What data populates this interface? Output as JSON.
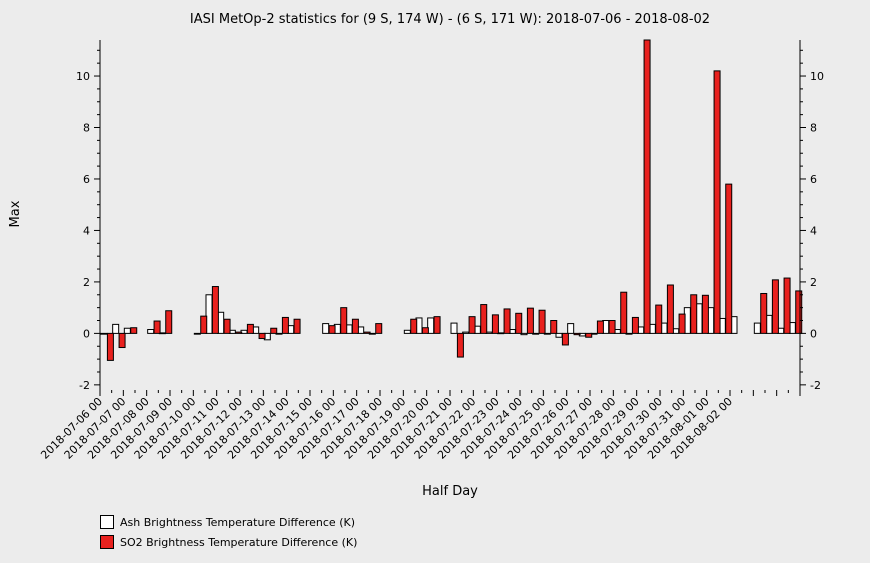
{
  "chart_data": {
    "type": "bar",
    "title": "IASI MetOp-2 statistics for (9 S, 174 W) - (6 S, 171 W): 2018-07-06 - 2018-08-02",
    "xlabel": "Half Day",
    "ylabel": "Max",
    "ylim": [
      -2.2,
      11.4
    ],
    "yticks": [
      -2,
      0,
      2,
      4,
      6,
      8,
      10
    ],
    "x_tick_labels": [
      "2018-07-06 00",
      "2018-07-07 00",
      "2018-07-08 00",
      "2018-07-09 00",
      "2018-07-10 00",
      "2018-07-11 00",
      "2018-07-12 00",
      "2018-07-13 00",
      "2018-07-14 00",
      "2018-07-15 00",
      "2018-07-16 00",
      "2018-07-17 00",
      "2018-07-18 00",
      "2018-07-19 00",
      "2018-07-20 00",
      "2018-07-21 00",
      "2018-07-22 00",
      "2018-07-23 00",
      "2018-07-24 00",
      "2018-07-25 00",
      "2018-07-26 00",
      "2018-07-27 00",
      "2018-07-28 00",
      "2018-07-29 00",
      "2018-07-30 00",
      "2018-07-31 00",
      "2018-08-01 00",
      "2018-08-02 00"
    ],
    "series": [
      {
        "name": "Ash Brightness Temperature Difference (K)",
        "color": "#ffffff",
        "values": [
          0.0,
          0.35,
          0.2,
          null,
          0.15,
          0.02,
          null,
          null,
          0.0,
          1.5,
          0.82,
          0.12,
          0.12,
          0.25,
          -0.25,
          0.0,
          0.3,
          null,
          null,
          0.38,
          0.35,
          0.33,
          0.25,
          0.0,
          null,
          null,
          0.12,
          0.6,
          0.6,
          null,
          0.4,
          0.05,
          0.28,
          0.05,
          0.02,
          0.15,
          -0.05,
          0.0,
          0.0,
          -0.15,
          0.38,
          -0.1,
          0.0,
          0.5,
          0.15,
          -0.02,
          0.25,
          0.35,
          0.4,
          0.18,
          1.0,
          1.15,
          1.0,
          0.58,
          0.65,
          null,
          0.4,
          0.7,
          0.2,
          0.42
        ]
      },
      {
        "name": "SO2 Brightness Temperature Difference (K)",
        "color": "#e8211e",
        "values": [
          -1.05,
          -0.55,
          0.22,
          null,
          0.48,
          0.88,
          null,
          null,
          0.67,
          1.82,
          0.55,
          0.05,
          0.35,
          -0.2,
          0.2,
          0.62,
          0.55,
          null,
          null,
          0.3,
          1.0,
          0.55,
          0.05,
          0.38,
          null,
          null,
          0.55,
          0.22,
          0.65,
          null,
          -0.92,
          0.65,
          1.12,
          0.72,
          0.95,
          0.78,
          0.98,
          0.9,
          0.5,
          -0.45,
          -0.05,
          -0.15,
          0.48,
          0.5,
          1.6,
          0.62,
          11.4,
          1.1,
          1.88,
          0.75,
          1.5,
          1.48,
          10.2,
          5.8,
          null,
          null,
          1.55,
          2.08,
          2.15,
          1.65
        ]
      }
    ],
    "legend_position": "bottom-left",
    "grid": false
  }
}
